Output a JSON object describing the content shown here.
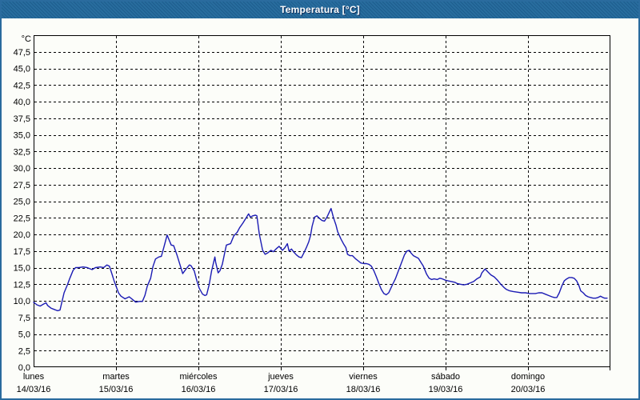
{
  "window": {
    "title": "Temperatura [°C]"
  },
  "colors": {
    "titlebar_bg": "#21689b",
    "titlebar_text": "#ffffff",
    "window_border": "#2a6b9e",
    "background": "#fcfdf9",
    "plot_border": "#000000",
    "gridline": "#000000",
    "line_color": "#1b1bb4"
  },
  "chart_data": {
    "type": "line",
    "title": "Temperatura [°C]",
    "y_unit_label": "°C",
    "ylabel": "",
    "xlabel": "",
    "ylim": [
      0,
      50
    ],
    "y_tick_step": 2.5,
    "y_ticks": [
      "0,0",
      "2,5",
      "5,0",
      "7,5",
      "10,0",
      "12,5",
      "15,0",
      "17,5",
      "20,0",
      "22,5",
      "25,0",
      "27,5",
      "30,0",
      "32,5",
      "35,0",
      "37,5",
      "40,0",
      "42,5",
      "45,0",
      "47,5"
    ],
    "grid": "dashed",
    "legend": "none",
    "x_range_days": 7,
    "x_days": [
      {
        "name": "lunes",
        "date": "14/03/16"
      },
      {
        "name": "martes",
        "date": "15/03/16"
      },
      {
        "name": "miércoles",
        "date": "16/03/16"
      },
      {
        "name": "jueves",
        "date": "17/03/16"
      },
      {
        "name": "viernes",
        "date": "18/03/16"
      },
      {
        "name": "sábado",
        "date": "19/03/16"
      },
      {
        "name": "domingo",
        "date": "20/03/16"
      }
    ],
    "series": [
      {
        "name": "Temperatura",
        "units": "°C",
        "points": [
          [
            0.0,
            9.8
          ],
          [
            0.04,
            9.4
          ],
          [
            0.08,
            9.2
          ],
          [
            0.12,
            9.5
          ],
          [
            0.15,
            9.7
          ],
          [
            0.17,
            9.3
          ],
          [
            0.21,
            8.9
          ],
          [
            0.25,
            8.7
          ],
          [
            0.29,
            8.5
          ],
          [
            0.32,
            8.6
          ],
          [
            0.37,
            11.2
          ],
          [
            0.41,
            12.4
          ],
          [
            0.44,
            13.4
          ],
          [
            0.48,
            14.6
          ],
          [
            0.51,
            15.0
          ],
          [
            0.55,
            15.0
          ],
          [
            0.6,
            15.1
          ],
          [
            0.65,
            15.0
          ],
          [
            0.71,
            14.7
          ],
          [
            0.75,
            15.0
          ],
          [
            0.81,
            15.1
          ],
          [
            0.85,
            15.0
          ],
          [
            0.89,
            15.4
          ],
          [
            0.92,
            15.2
          ],
          [
            0.95,
            14.1
          ],
          [
            0.98,
            12.9
          ],
          [
            1.01,
            11.9
          ],
          [
            1.03,
            11.2
          ],
          [
            1.06,
            10.7
          ],
          [
            1.11,
            10.3
          ],
          [
            1.16,
            10.6
          ],
          [
            1.2,
            10.2
          ],
          [
            1.24,
            9.8
          ],
          [
            1.28,
            9.9
          ],
          [
            1.32,
            9.9
          ],
          [
            1.35,
            10.8
          ],
          [
            1.38,
            12.2
          ],
          [
            1.42,
            13.4
          ],
          [
            1.45,
            15.2
          ],
          [
            1.48,
            16.3
          ],
          [
            1.52,
            16.6
          ],
          [
            1.55,
            16.7
          ],
          [
            1.58,
            18.0
          ],
          [
            1.62,
            19.9
          ],
          [
            1.64,
            19.3
          ],
          [
            1.67,
            18.4
          ],
          [
            1.7,
            18.3
          ],
          [
            1.74,
            16.9
          ],
          [
            1.77,
            15.7
          ],
          [
            1.81,
            14.1
          ],
          [
            1.85,
            14.8
          ],
          [
            1.89,
            15.4
          ],
          [
            1.91,
            15.3
          ],
          [
            1.95,
            14.5
          ],
          [
            1.98,
            13.1
          ],
          [
            2.01,
            11.9
          ],
          [
            2.05,
            11.0
          ],
          [
            2.08,
            10.8
          ],
          [
            2.1,
            10.9
          ],
          [
            2.13,
            12.4
          ],
          [
            2.16,
            14.5
          ],
          [
            2.2,
            16.6
          ],
          [
            2.21,
            15.8
          ],
          [
            2.24,
            14.2
          ],
          [
            2.26,
            14.5
          ],
          [
            2.29,
            15.5
          ],
          [
            2.32,
            17.3
          ],
          [
            2.34,
            18.4
          ],
          [
            2.39,
            18.6
          ],
          [
            2.43,
            19.8
          ],
          [
            2.47,
            20.3
          ],
          [
            2.5,
            21.0
          ],
          [
            2.54,
            21.7
          ],
          [
            2.58,
            22.5
          ],
          [
            2.61,
            23.1
          ],
          [
            2.63,
            22.6
          ],
          [
            2.66,
            22.8
          ],
          [
            2.69,
            22.9
          ],
          [
            2.71,
            22.8
          ],
          [
            2.74,
            20.0
          ],
          [
            2.78,
            17.6
          ],
          [
            2.81,
            17.0
          ],
          [
            2.84,
            17.2
          ],
          [
            2.88,
            17.6
          ],
          [
            2.91,
            17.4
          ],
          [
            2.95,
            17.9
          ],
          [
            2.98,
            18.2
          ],
          [
            3.02,
            17.6
          ],
          [
            3.05,
            18.0
          ],
          [
            3.08,
            18.6
          ],
          [
            3.1,
            17.5
          ],
          [
            3.13,
            17.8
          ],
          [
            3.16,
            17.3
          ],
          [
            3.19,
            16.9
          ],
          [
            3.22,
            16.6
          ],
          [
            3.25,
            16.5
          ],
          [
            3.28,
            17.2
          ],
          [
            3.31,
            18.0
          ],
          [
            3.34,
            18.9
          ],
          [
            3.36,
            19.8
          ],
          [
            3.38,
            21.2
          ],
          [
            3.41,
            22.6
          ],
          [
            3.44,
            22.8
          ],
          [
            3.47,
            22.4
          ],
          [
            3.5,
            22.1
          ],
          [
            3.53,
            22.0
          ],
          [
            3.56,
            22.6
          ],
          [
            3.59,
            23.4
          ],
          [
            3.61,
            23.9
          ],
          [
            3.64,
            22.5
          ],
          [
            3.67,
            21.4
          ],
          [
            3.69,
            20.4
          ],
          [
            3.73,
            19.3
          ],
          [
            3.76,
            18.6
          ],
          [
            3.79,
            18.0
          ],
          [
            3.81,
            17.0
          ],
          [
            3.84,
            16.8
          ],
          [
            3.87,
            16.8
          ],
          [
            3.91,
            16.3
          ],
          [
            3.95,
            15.9
          ],
          [
            3.97,
            15.7
          ],
          [
            4.01,
            15.6
          ],
          [
            4.04,
            15.6
          ],
          [
            4.07,
            15.5
          ],
          [
            4.1,
            15.2
          ],
          [
            4.13,
            14.5
          ],
          [
            4.16,
            13.6
          ],
          [
            4.19,
            12.6
          ],
          [
            4.22,
            11.7
          ],
          [
            4.25,
            11.1
          ],
          [
            4.28,
            10.9
          ],
          [
            4.31,
            11.2
          ],
          [
            4.35,
            12.3
          ],
          [
            4.39,
            13.3
          ],
          [
            4.43,
            14.6
          ],
          [
            4.47,
            15.9
          ],
          [
            4.5,
            16.9
          ],
          [
            4.53,
            17.5
          ],
          [
            4.56,
            17.6
          ],
          [
            4.58,
            17.2
          ],
          [
            4.61,
            16.8
          ],
          [
            4.64,
            16.6
          ],
          [
            4.67,
            16.4
          ],
          [
            4.7,
            15.8
          ],
          [
            4.73,
            15.2
          ],
          [
            4.77,
            14.0
          ],
          [
            4.8,
            13.4
          ],
          [
            4.83,
            13.2
          ],
          [
            4.86,
            13.3
          ],
          [
            4.9,
            13.2
          ],
          [
            4.93,
            13.4
          ],
          [
            4.96,
            13.3
          ],
          [
            5.0,
            13.1
          ],
          [
            5.03,
            13.0
          ],
          [
            5.07,
            12.9
          ],
          [
            5.11,
            12.8
          ],
          [
            5.14,
            12.6
          ],
          [
            5.18,
            12.5
          ],
          [
            5.22,
            12.4
          ],
          [
            5.26,
            12.5
          ],
          [
            5.3,
            12.7
          ],
          [
            5.34,
            12.9
          ],
          [
            5.38,
            13.3
          ],
          [
            5.42,
            13.6
          ],
          [
            5.44,
            14.2
          ],
          [
            5.48,
            14.8
          ],
          [
            5.51,
            14.4
          ],
          [
            5.55,
            13.9
          ],
          [
            5.59,
            13.6
          ],
          [
            5.63,
            13.1
          ],
          [
            5.67,
            12.5
          ],
          [
            5.71,
            12.0
          ],
          [
            5.74,
            11.7
          ],
          [
            5.78,
            11.5
          ],
          [
            5.82,
            11.4
          ],
          [
            5.87,
            11.3
          ],
          [
            5.92,
            11.2
          ],
          [
            5.97,
            11.2
          ],
          [
            6.02,
            11.1
          ],
          [
            6.05,
            11.1
          ],
          [
            6.09,
            11.1
          ],
          [
            6.13,
            11.2
          ],
          [
            6.17,
            11.2
          ],
          [
            6.21,
            11.0
          ],
          [
            6.25,
            10.8
          ],
          [
            6.29,
            10.6
          ],
          [
            6.32,
            10.5
          ],
          [
            6.35,
            10.5
          ],
          [
            6.38,
            11.2
          ],
          [
            6.41,
            12.2
          ],
          [
            6.44,
            13.0
          ],
          [
            6.47,
            13.3
          ],
          [
            6.5,
            13.5
          ],
          [
            6.53,
            13.5
          ],
          [
            6.56,
            13.4
          ],
          [
            6.59,
            13.0
          ],
          [
            6.62,
            12.2
          ],
          [
            6.64,
            11.5
          ],
          [
            6.67,
            11.2
          ],
          [
            6.7,
            10.8
          ],
          [
            6.73,
            10.6
          ],
          [
            6.76,
            10.5
          ],
          [
            6.79,
            10.4
          ],
          [
            6.82,
            10.4
          ],
          [
            6.85,
            10.5
          ],
          [
            6.88,
            10.7
          ],
          [
            6.91,
            10.5
          ],
          [
            6.93,
            10.4
          ],
          [
            6.96,
            10.4
          ]
        ]
      }
    ]
  }
}
